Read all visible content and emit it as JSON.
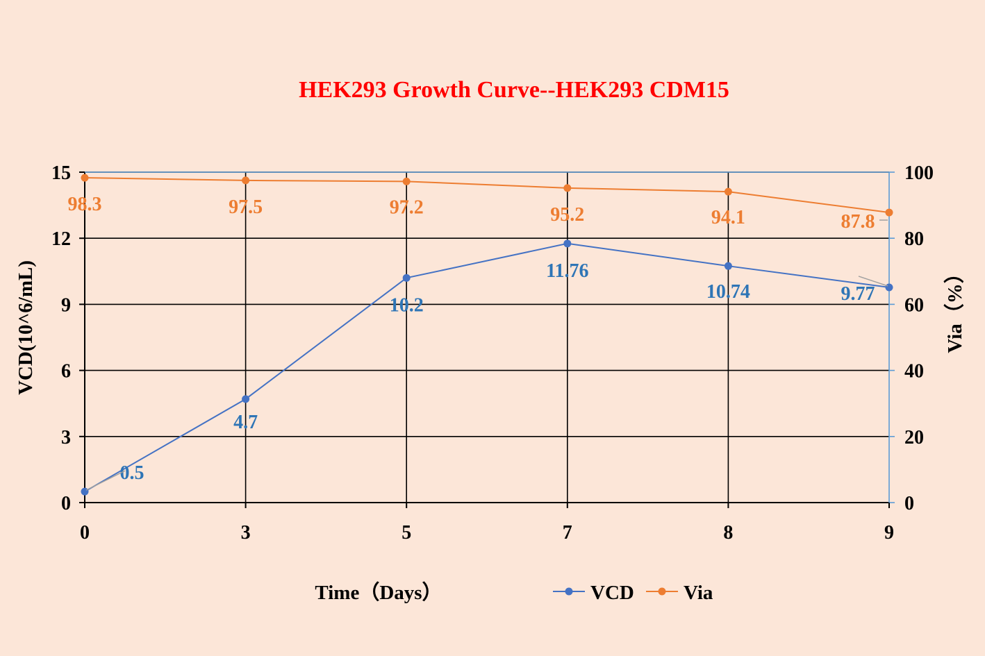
{
  "chart_data": {
    "type": "line",
    "title": "HEK293 Growth Curve--HEK293 CDM15",
    "xlabel": "Time（Days）",
    "ylabel": "VCD(10^6/mL)",
    "y2label": "Via（%）",
    "categories": [
      "0",
      "3",
      "5",
      "7",
      "8",
      "9"
    ],
    "ylim": [
      0,
      15
    ],
    "yticks": [
      0,
      3,
      6,
      9,
      12,
      15
    ],
    "y2lim": [
      0,
      100
    ],
    "y2ticks": [
      0,
      20,
      40,
      60,
      80,
      100
    ],
    "grid": true,
    "legend_position": "bottom",
    "series": [
      {
        "name": "VCD",
        "axis": "left",
        "color": "#4472c4",
        "label_color": "#2e75b6",
        "values": [
          0.5,
          4.7,
          10.2,
          11.76,
          10.74,
          9.77
        ],
        "labels": [
          "0.5",
          "4.7",
          "10.2",
          "11.76",
          "10.74",
          "9.77"
        ]
      },
      {
        "name": "Via",
        "axis": "right",
        "color": "#ed7d31",
        "label_color": "#ed7d31",
        "values": [
          98.3,
          97.5,
          97.2,
          95.2,
          94.1,
          87.8
        ],
        "labels": [
          "98.3",
          "97.5",
          "97.2",
          "95.2",
          "94.1",
          "87.8"
        ]
      }
    ]
  }
}
